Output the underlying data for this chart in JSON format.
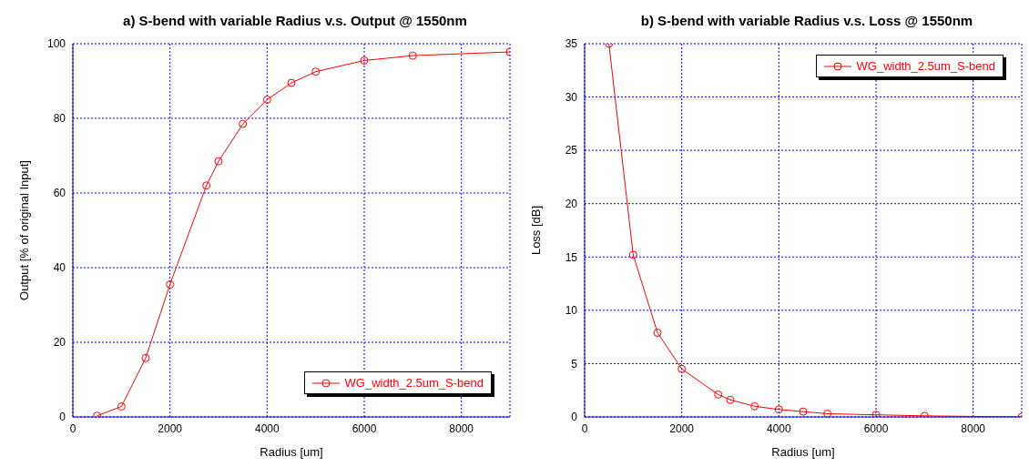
{
  "chart_data": [
    {
      "type": "line",
      "title": "a) S-bend with variable Radius v.s. Output @ 1550nm",
      "xlabel": "Radius [um]",
      "ylabel": "Output [% of original Input]",
      "x": [
        500,
        1000,
        1500,
        2000,
        2750,
        3000,
        3500,
        4000,
        4500,
        5000,
        6000,
        7000,
        9000
      ],
      "series": [
        {
          "name": "WG_width_2.5um_S-bend",
          "color": "#ff0000",
          "values": [
            0.3,
            2.8,
            15.8,
            35.5,
            62,
            68.5,
            78.5,
            85,
            89.5,
            92.5,
            95.5,
            96.8,
            97.8
          ]
        }
      ],
      "xlim": [
        0,
        9000
      ],
      "xticks": [
        0,
        2000,
        4000,
        6000,
        8000
      ],
      "ylim": [
        0,
        100
      ],
      "yticks": [
        0,
        20,
        40,
        60,
        80,
        100
      ],
      "grid": true,
      "legend": "bottom right",
      "marker": "circle",
      "line_style": "solid"
    },
    {
      "type": "line",
      "title": "b) S-bend with variable Radius v.s. Loss @ 1550nm",
      "xlabel": "Radius [um]",
      "ylabel": "Loss [dB]",
      "x": [
        500,
        1000,
        1500,
        2000,
        2750,
        3000,
        3500,
        4000,
        4500,
        5000,
        6000,
        7000,
        9000
      ],
      "series": [
        {
          "name": "WG_width_2.5um_S-bend",
          "color": "#ff0000",
          "values": [
            35,
            15.2,
            7.9,
            4.5,
            2.1,
            1.6,
            1.0,
            0.7,
            0.5,
            0.3,
            0.2,
            0.1,
            0
          ]
        }
      ],
      "xlim": [
        0,
        9000
      ],
      "xticks": [
        0,
        2000,
        4000,
        6000,
        8000
      ],
      "ylim": [
        0,
        35
      ],
      "yticks": [
        0,
        5,
        10,
        15,
        20,
        25,
        30,
        35
      ],
      "grid": true,
      "legend": "top right",
      "marker": "circle",
      "line_style": "solid"
    }
  ]
}
